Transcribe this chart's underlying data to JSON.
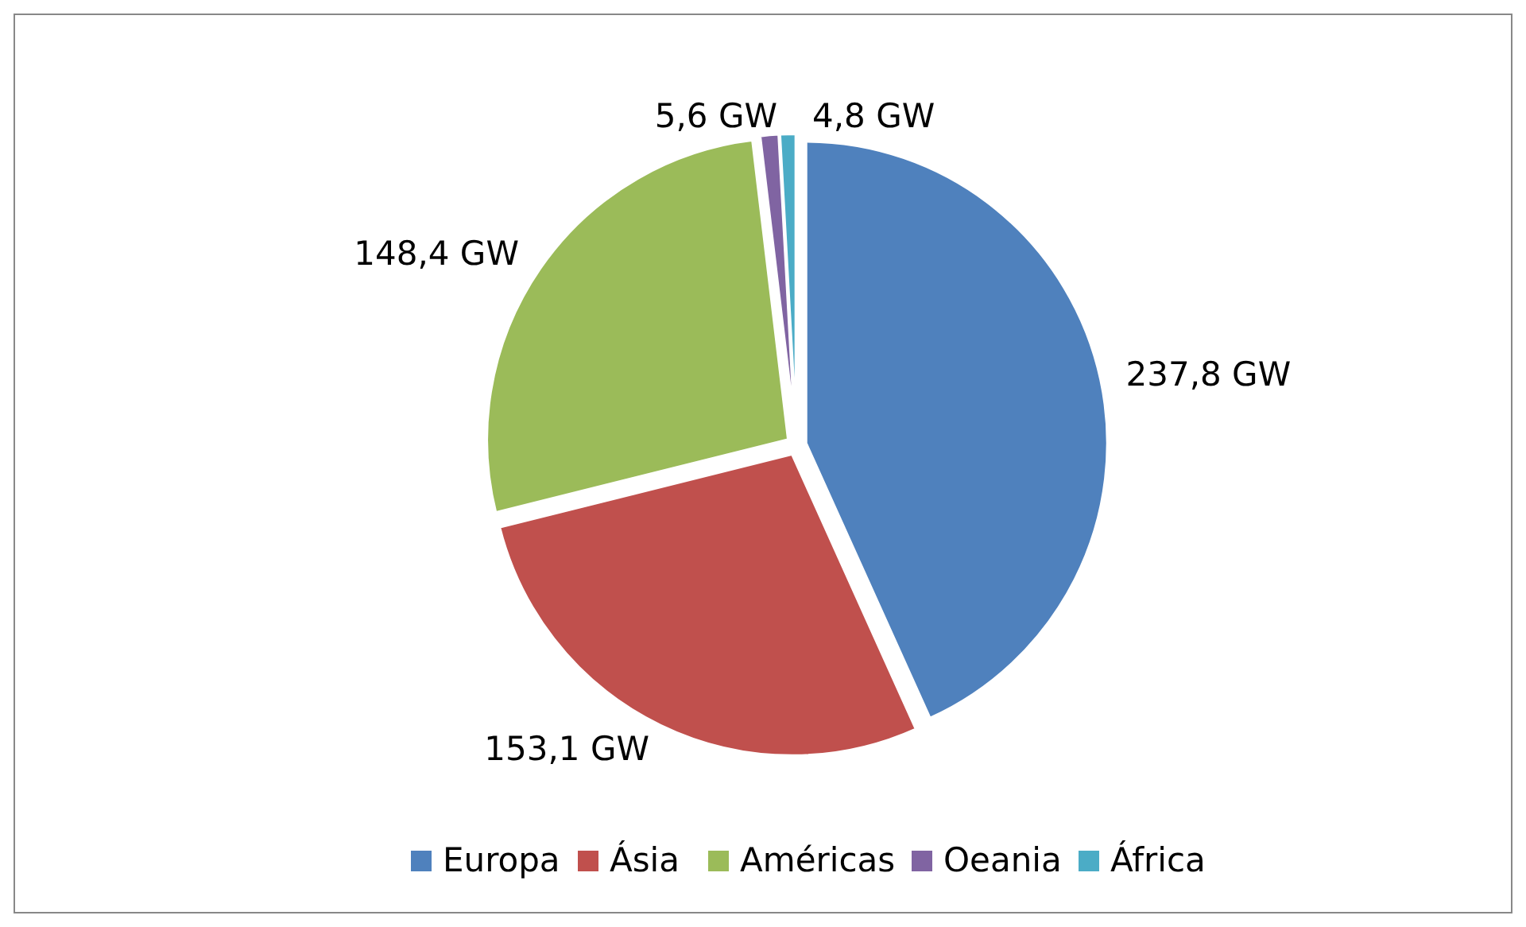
{
  "chart_data": {
    "type": "pie",
    "categories": [
      "Europa",
      "Ásia",
      "Américas",
      "Oeania",
      "África"
    ],
    "values": [
      237.8,
      153.1,
      148.4,
      5.6,
      4.8
    ],
    "value_labels": [
      "237,8 GW",
      "153,1 GW",
      "148,4 GW",
      "5,6 GW",
      "4,8 GW"
    ],
    "colors": [
      "#4f81bd",
      "#c0504d",
      "#9bbb59",
      "#8064a2",
      "#4bacc6"
    ],
    "legend": "bottom"
  }
}
